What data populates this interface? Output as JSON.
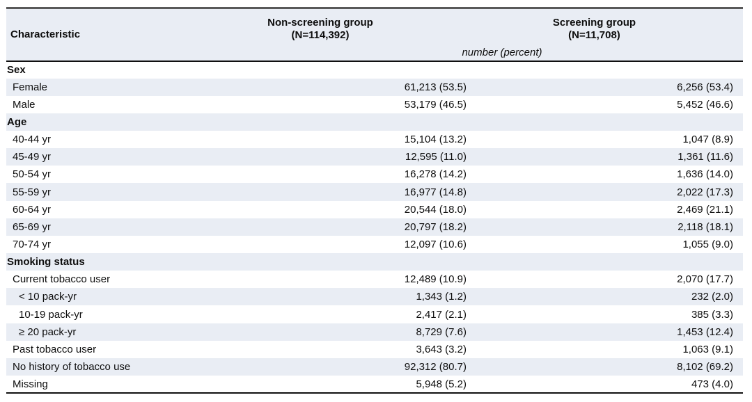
{
  "colors": {
    "stripe": "#e9edf4",
    "rule_top": "#595959",
    "rule_dark": "#101010",
    "text": "#0e0e0e",
    "background": "#ffffff"
  },
  "table": {
    "header": {
      "characteristic_label": "Characteristic",
      "col2_label": "Non-screening group",
      "col2_n": "(N=114,392)",
      "col3_label": "Screening group",
      "col3_n": "(N=11,708)",
      "units_note": "number (percent)"
    },
    "rows": [
      {
        "type": "section",
        "label": "Sex",
        "non_screening": "",
        "screening": ""
      },
      {
        "type": "item",
        "label": "Female",
        "non_screening": "61,213 (53.5)",
        "screening": "6,256 (53.4)"
      },
      {
        "type": "item",
        "label": "Male",
        "non_screening": "53,179 (46.5)",
        "screening": "5,452 (46.6)"
      },
      {
        "type": "section",
        "label": "Age",
        "non_screening": "",
        "screening": ""
      },
      {
        "type": "item",
        "label": "40-44 yr",
        "non_screening": "15,104 (13.2)",
        "screening": "1,047 (8.9)"
      },
      {
        "type": "item",
        "label": "45-49 yr",
        "non_screening": "12,595 (11.0)",
        "screening": "1,361 (11.6)"
      },
      {
        "type": "item",
        "label": "50-54 yr",
        "non_screening": "16,278 (14.2)",
        "screening": "1,636 (14.0)"
      },
      {
        "type": "item",
        "label": "55-59 yr",
        "non_screening": "16,977 (14.8)",
        "screening": "2,022 (17.3)"
      },
      {
        "type": "item",
        "label": "60-64 yr",
        "non_screening": "20,544 (18.0)",
        "screening": "2,469 (21.1)"
      },
      {
        "type": "item",
        "label": "65-69 yr",
        "non_screening": "20,797 (18.2)",
        "screening": "2,118 (18.1)"
      },
      {
        "type": "item",
        "label": "70-74 yr",
        "non_screening": "12,097 (10.6)",
        "screening": "1,055 (9.0)"
      },
      {
        "type": "section",
        "label": "Smoking status",
        "non_screening": "",
        "screening": ""
      },
      {
        "type": "item",
        "label": "Current tobacco user",
        "non_screening": "12,489 (10.9)",
        "screening": "2,070 (17.7)"
      },
      {
        "type": "subitem",
        "label": "< 10 pack-yr",
        "non_screening": "1,343 (1.2)",
        "screening": "232 (2.0)"
      },
      {
        "type": "subitem",
        "label": "10-19 pack-yr",
        "non_screening": "2,417 (2.1)",
        "screening": "385 (3.3)"
      },
      {
        "type": "subitem",
        "label": "≥ 20 pack-yr",
        "non_screening": "8,729 (7.6)",
        "screening": "1,453 (12.4)"
      },
      {
        "type": "item",
        "label": "Past tobacco user",
        "non_screening": "3,643 (3.2)",
        "screening": "1,063 (9.1)"
      },
      {
        "type": "item",
        "label": "No history of tobacco use",
        "non_screening": "92,312 (80.7)",
        "screening": "8,102 (69.2)"
      },
      {
        "type": "item",
        "label": "Missing",
        "non_screening": "5,948 (5.2)",
        "screening": "473 (4.0)"
      }
    ]
  }
}
